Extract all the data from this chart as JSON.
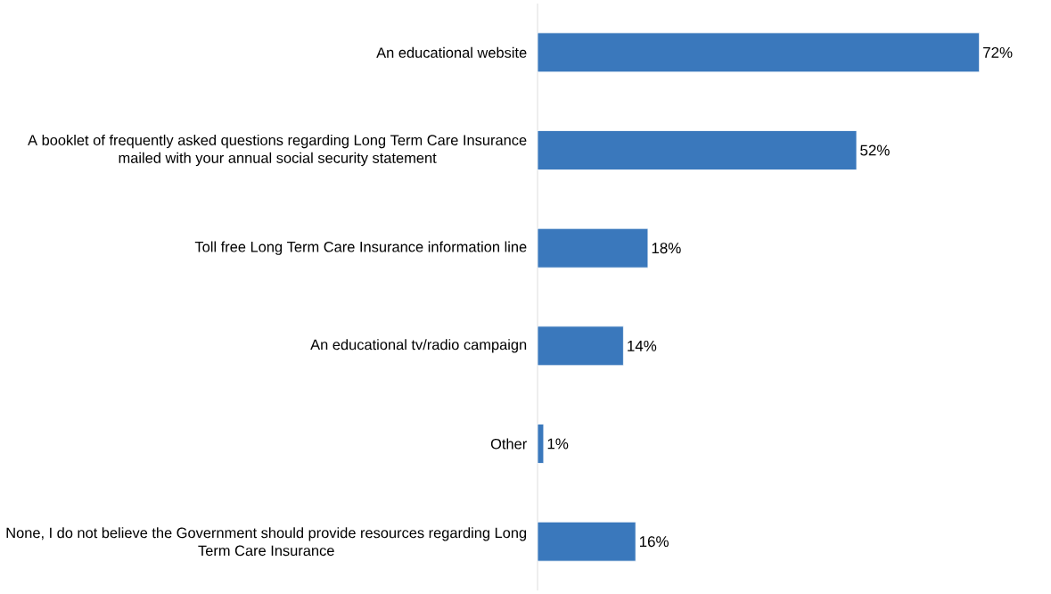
{
  "chart_data": {
    "type": "bar",
    "orientation": "horizontal",
    "categories": [
      "An educational website",
      "A booklet of frequently asked questions regarding Long Term Care Insurance mailed with your annual social security statement",
      "Toll free Long Term Care Insurance information line",
      "An educational tv/radio campaign",
      "Other",
      "None, I do not believe the Government should provide resources regarding Long Term Care Insurance"
    ],
    "values": [
      72,
      52,
      18,
      14,
      1,
      16
    ],
    "value_labels": [
      "72%",
      "52%",
      "18%",
      "14%",
      "1%",
      "16%"
    ],
    "color": "#3a78bc"
  }
}
